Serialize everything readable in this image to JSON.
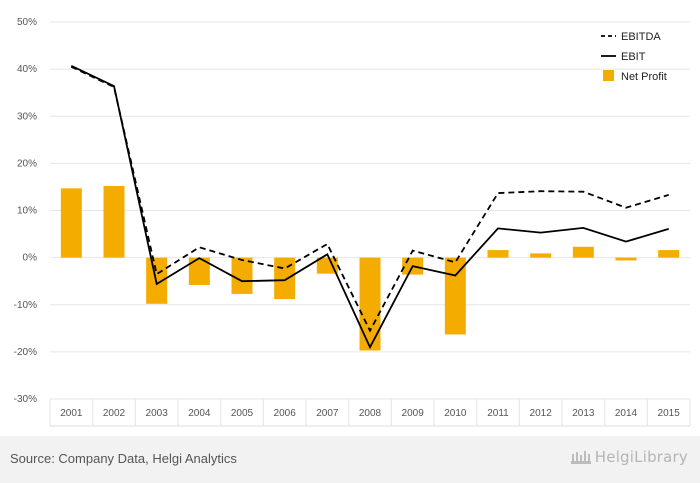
{
  "chart_data": {
    "type": "bar",
    "categories": [
      "2001",
      "2002",
      "2003",
      "2004",
      "2005",
      "2006",
      "2007",
      "2008",
      "2009",
      "2010",
      "2011",
      "2012",
      "2013",
      "2014",
      "2015"
    ],
    "series": [
      {
        "name": "EBITDA",
        "kind": "line",
        "style": "dashed",
        "color": "#000000",
        "values": [
          40.5,
          36.2,
          -3.5,
          2.2,
          -0.5,
          -2.3,
          2.9,
          -15.5,
          1.5,
          -1.0,
          13.7,
          14.1,
          14.0,
          10.6,
          13.3
        ]
      },
      {
        "name": "EBIT",
        "kind": "line",
        "style": "solid",
        "color": "#000000",
        "values": [
          40.7,
          36.4,
          -5.6,
          -0.1,
          -5.0,
          -4.8,
          0.7,
          -19.0,
          -1.8,
          -3.8,
          6.2,
          5.3,
          6.3,
          3.4,
          6.1
        ]
      },
      {
        "name": "Net Profit",
        "kind": "bar",
        "color": "#f5ac00",
        "values": [
          14.7,
          15.2,
          -9.8,
          -5.8,
          -7.7,
          -8.8,
          -3.4,
          -19.7,
          -3.6,
          -16.3,
          1.6,
          0.9,
          2.3,
          -0.6,
          1.6
        ]
      }
    ],
    "yticks": [
      "50%",
      "40%",
      "30%",
      "20%",
      "10%",
      "0%",
      "-10%",
      "-20%",
      "-30%"
    ],
    "ylim": [
      -30,
      50
    ],
    "grid": true,
    "legend_position": "top-right"
  },
  "footer": {
    "source": "Source: Company Data, Helgi Analytics",
    "brand": "HelgiLibrary"
  }
}
